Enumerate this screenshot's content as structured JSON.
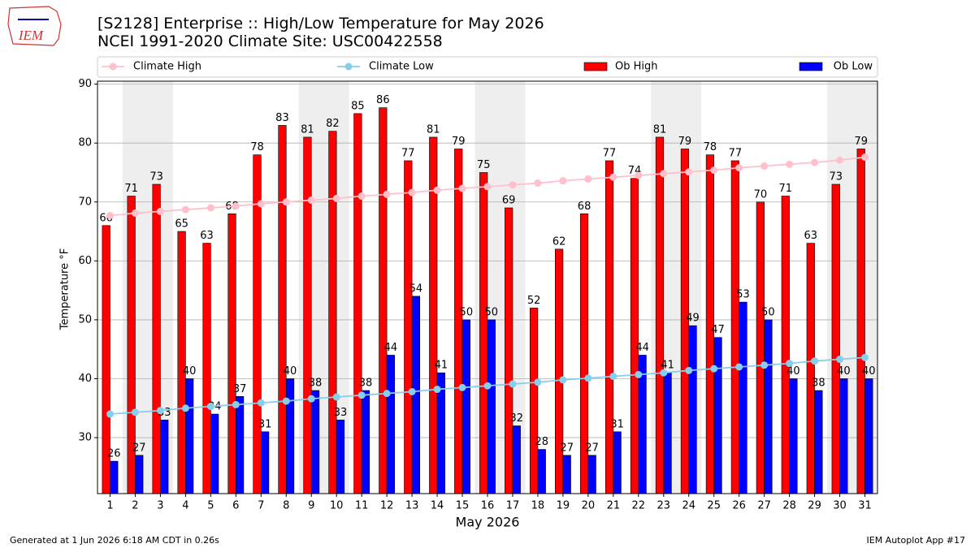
{
  "logo": "IEM",
  "chart_data": {
    "type": "bar",
    "title": "[S2128] Enterprise :: High/Low Temperature for May 2026",
    "subtitle": "NCEI 1991-2020 Climate Site: USC00422558",
    "x_label": "May 2026",
    "y_label": "Temperature °F",
    "categories": [
      "1",
      "2",
      "3",
      "4",
      "5",
      "6",
      "7",
      "8",
      "9",
      "10",
      "11",
      "12",
      "13",
      "14",
      "15",
      "16",
      "17",
      "18",
      "19",
      "20",
      "21",
      "22",
      "23",
      "24",
      "25",
      "26",
      "27",
      "28",
      "29",
      "30",
      "31"
    ],
    "series": [
      {
        "name": "Climate High",
        "kind": "line",
        "color": "#ffc0cb",
        "values": [
          67.7,
          68.1,
          68.4,
          68.7,
          69.0,
          69.3,
          69.7,
          70.0,
          70.3,
          70.6,
          71.0,
          71.3,
          71.6,
          72.0,
          72.3,
          72.6,
          72.9,
          73.2,
          73.6,
          73.9,
          74.2,
          74.5,
          74.8,
          75.1,
          75.4,
          75.8,
          76.1,
          76.4,
          76.7,
          77.1,
          77.6
        ]
      },
      {
        "name": "Climate Low",
        "kind": "line",
        "color": "#87ceeb",
        "values": [
          34.0,
          34.3,
          34.6,
          35.0,
          35.3,
          35.6,
          35.9,
          36.2,
          36.6,
          36.9,
          37.2,
          37.5,
          37.8,
          38.2,
          38.5,
          38.8,
          39.1,
          39.4,
          39.8,
          40.1,
          40.4,
          40.7,
          41.0,
          41.4,
          41.7,
          42.0,
          42.3,
          42.6,
          43.0,
          43.3,
          43.6
        ]
      },
      {
        "name": "Ob High",
        "kind": "bar",
        "color": "#ff0000",
        "values": [
          66,
          71,
          73,
          65,
          63,
          68,
          78,
          83,
          81,
          82,
          85,
          86,
          77,
          81,
          79,
          75,
          69,
          52,
          62,
          68,
          77,
          74,
          81,
          79,
          78,
          77,
          70,
          71,
          63,
          73,
          79
        ]
      },
      {
        "name": "Ob Low",
        "kind": "bar",
        "color": "#0000ff",
        "values": [
          26,
          27,
          33,
          40,
          34,
          37,
          31,
          40,
          38,
          33,
          38,
          44,
          54,
          41,
          50,
          50,
          32,
          28,
          27,
          27,
          31,
          44,
          41,
          49,
          47,
          53,
          50,
          40,
          38,
          40,
          40
        ]
      }
    ],
    "ylim": [
      20.5,
      90.5
    ],
    "yticks": [
      30,
      40,
      50,
      60,
      70,
      80,
      90
    ],
    "grid": true,
    "legend": "top",
    "footer_left": "Generated at 1 Jun 2026 6:18 AM CDT in 0.26s",
    "footer_right": "IEM Autoplot App #17"
  }
}
